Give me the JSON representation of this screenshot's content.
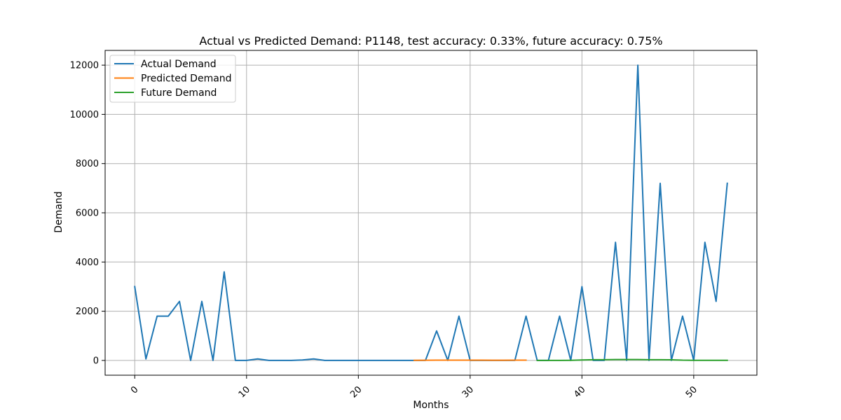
{
  "chart_data": {
    "type": "line",
    "title": "Actual vs Predicted Demand: P1148, test accuracy: 0.33%, future accuracy: 0.75%",
    "xlabel": "Months",
    "ylabel": "Demand",
    "xlim": [
      -2.65,
      55.65
    ],
    "ylim": [
      -600,
      12600
    ],
    "xticks": [
      0,
      10,
      20,
      30,
      40,
      50
    ],
    "yticks": [
      0,
      2000,
      4000,
      6000,
      8000,
      10000,
      12000
    ],
    "grid": true,
    "legend_position": "top-left",
    "series": [
      {
        "name": "Actual Demand",
        "color": "#1f77b4",
        "x": [
          0,
          1,
          2,
          3,
          4,
          5,
          6,
          7,
          8,
          9,
          10,
          11,
          12,
          13,
          14,
          15,
          16,
          17,
          18,
          19,
          20,
          21,
          22,
          23,
          24,
          25,
          26,
          27,
          28,
          29,
          30,
          31,
          32,
          33,
          34,
          35,
          36,
          37,
          38,
          39,
          40,
          41,
          42,
          43,
          44,
          45,
          46,
          47,
          48,
          49,
          50,
          51,
          52,
          53
        ],
        "y": [
          3000,
          60,
          1800,
          1800,
          2400,
          0,
          2400,
          0,
          3600,
          0,
          0,
          60,
          0,
          0,
          0,
          20,
          60,
          0,
          0,
          0,
          0,
          0,
          0,
          0,
          0,
          0,
          0,
          1200,
          0,
          1800,
          0,
          0,
          0,
          0,
          0,
          1800,
          0,
          0,
          1800,
          0,
          3000,
          0,
          0,
          4800,
          0,
          12000,
          0,
          7200,
          0,
          1800,
          0,
          4800,
          2400,
          7200
        ]
      },
      {
        "name": "Predicted Demand",
        "color": "#ff7f0e",
        "x": [
          25,
          26,
          27,
          28,
          29,
          30,
          31,
          32,
          33,
          34,
          35
        ],
        "y": [
          5,
          8,
          10,
          10,
          12,
          10,
          10,
          8,
          8,
          10,
          10
        ]
      },
      {
        "name": "Future Demand",
        "color": "#2ca02c",
        "x": [
          36,
          37,
          38,
          39,
          40,
          41,
          42,
          43,
          44,
          45,
          46,
          47,
          48,
          49,
          50,
          51,
          52,
          53
        ],
        "y": [
          0,
          0,
          0,
          5,
          20,
          30,
          30,
          35,
          35,
          35,
          30,
          30,
          25,
          10,
          5,
          5,
          5,
          5
        ]
      }
    ]
  }
}
